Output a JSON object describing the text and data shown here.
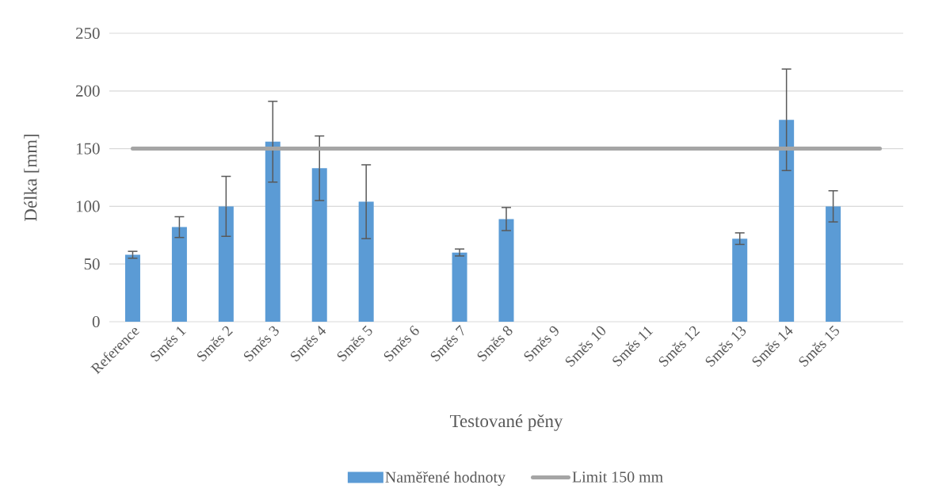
{
  "chart_data": {
    "type": "bar",
    "xlabel": "Testované pěny",
    "ylabel": "Délka [mm]",
    "categories": [
      "Reference",
      "Směs 1",
      "Směs 2",
      "Směs 3",
      "Směs 4",
      "Směs 5",
      "Směs 6",
      "Směs 7",
      "Směs 8",
      "Směs 9",
      "Směs 10",
      "Směs 11",
      "Směs 12",
      "Směs 13",
      "Směs 14",
      "Směs 15",
      null
    ],
    "series": [
      {
        "name": "Naměřené hodnoty",
        "color": "#5b9bd5",
        "values": [
          58,
          82,
          100,
          156,
          133,
          104,
          0,
          60,
          89,
          0,
          0,
          0,
          0,
          72,
          175,
          100,
          null
        ],
        "errors": [
          3,
          9,
          26,
          35,
          28,
          32,
          null,
          3,
          10,
          null,
          null,
          null,
          null,
          5,
          44,
          13.5,
          null
        ]
      }
    ],
    "ref_lines": [
      {
        "axis": "y",
        "value": 150,
        "label": "Limit 150 mm",
        "color": "#a5a5a5"
      }
    ],
    "ylim": [
      0,
      250
    ],
    "yticks": [
      0,
      50,
      100,
      150,
      200,
      250
    ],
    "grid": "y",
    "legend": "bottom"
  }
}
